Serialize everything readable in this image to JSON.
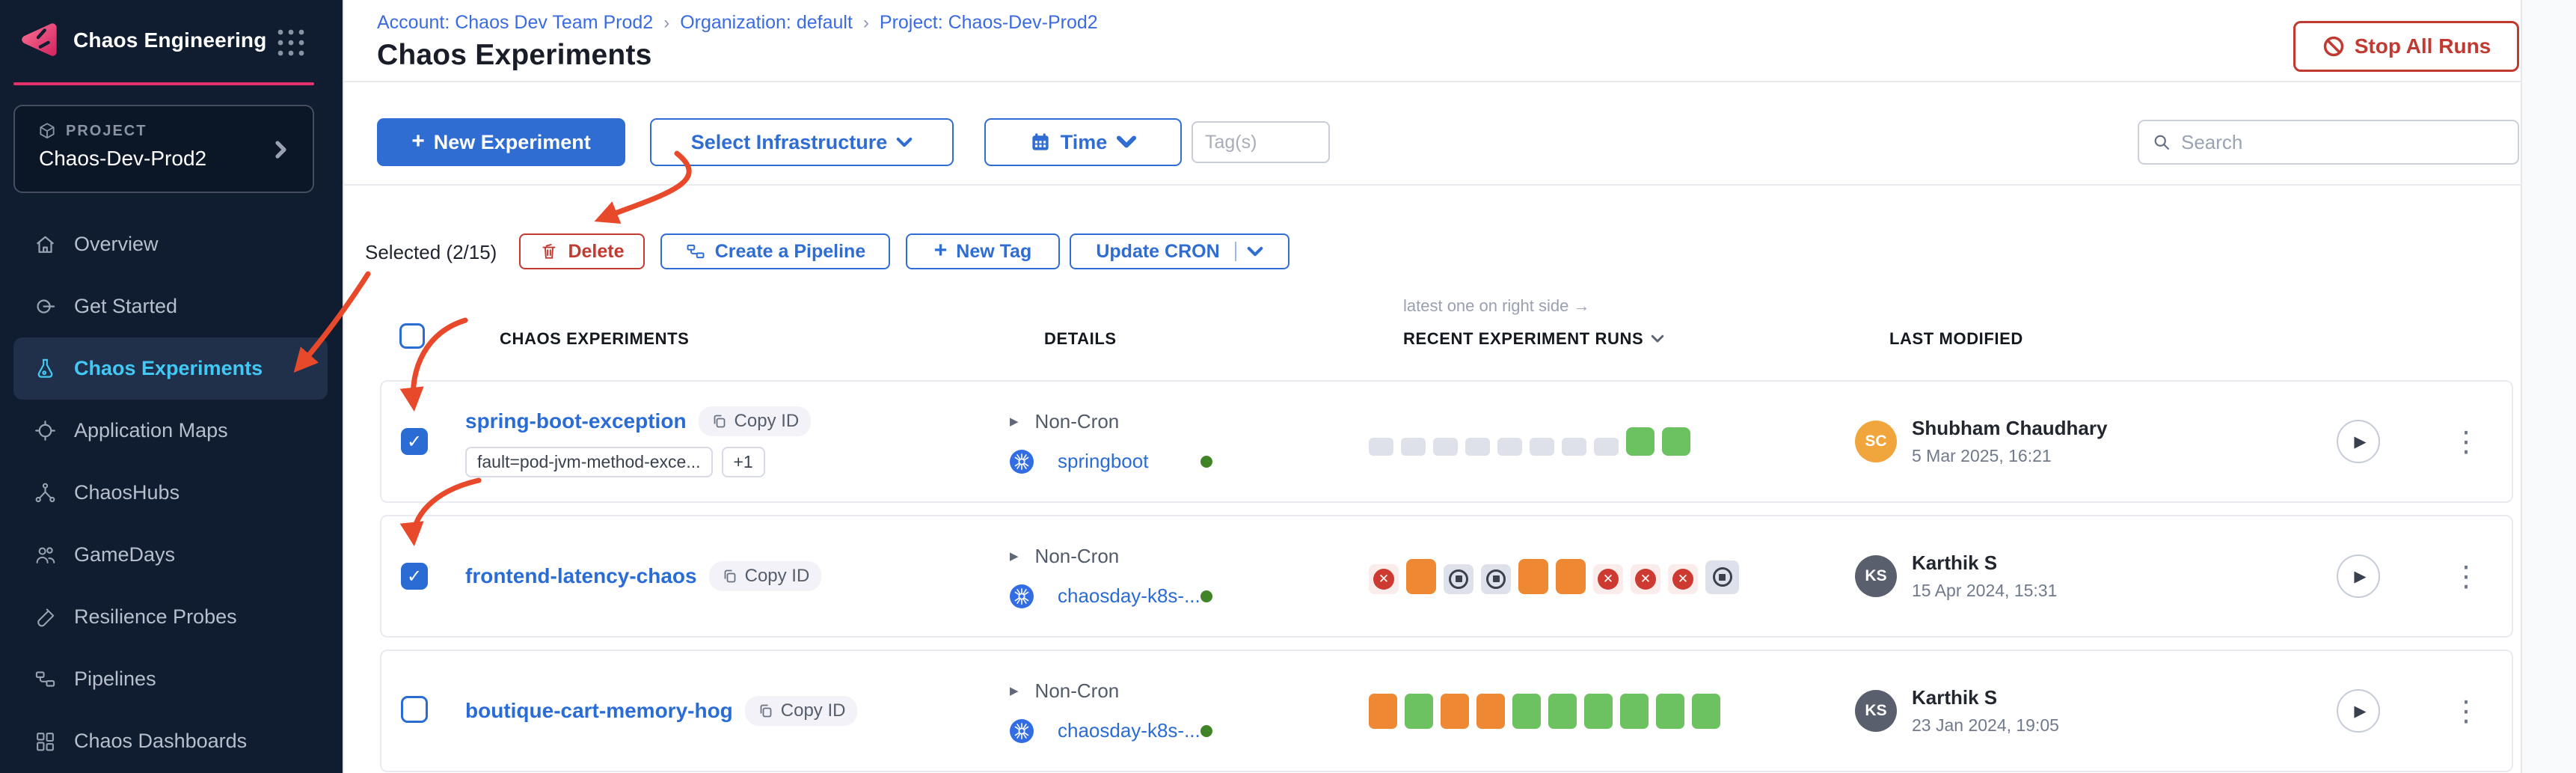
{
  "brand": {
    "module_title": "Chaos Engineering"
  },
  "sidebar": {
    "project_label": "PROJECT",
    "project_name": "Chaos-Dev-Prod2",
    "items": [
      {
        "label": "Overview",
        "icon": "home",
        "active": false
      },
      {
        "label": "Get Started",
        "icon": "get-started",
        "active": false
      },
      {
        "label": "Chaos Experiments",
        "icon": "flask",
        "active": true
      },
      {
        "label": "Application Maps",
        "icon": "target",
        "active": false
      },
      {
        "label": "ChaosHubs",
        "icon": "hub",
        "active": false
      },
      {
        "label": "GameDays",
        "icon": "people",
        "active": false
      },
      {
        "label": "Resilience Probes",
        "icon": "probe",
        "active": false
      },
      {
        "label": "Pipelines",
        "icon": "pipeline",
        "active": false
      },
      {
        "label": "Chaos Dashboards",
        "icon": "dashboard",
        "active": false
      }
    ]
  },
  "breadcrumb": {
    "items": [
      "Account: Chaos Dev Team Prod2",
      "Organization: default",
      "Project: Chaos-Dev-Prod2"
    ]
  },
  "page": {
    "title": "Chaos Experiments",
    "stop_all_runs_label": "Stop All Runs"
  },
  "toolbar": {
    "new_experiment_label": "New Experiment",
    "select_infrastructure_label": "Select Infrastructure",
    "time_label": "Time",
    "tags_placeholder": "Tag(s)",
    "search_placeholder": "Search"
  },
  "selection_bar": {
    "selected_text": "Selected (2/15)",
    "delete_label": "Delete",
    "create_pipeline_label": "Create a Pipeline",
    "new_tag_label": "New Tag",
    "update_cron_label": "Update CRON"
  },
  "table": {
    "note": "latest one on right side →",
    "headers": {
      "experiments": "CHAOS EXPERIMENTS",
      "details": "DETAILS",
      "recent_runs": "RECENT EXPERIMENT RUNS",
      "last_modified": "LAST MODIFIED"
    },
    "rows": [
      {
        "name": "spring-boot-exception",
        "copy_label": "Copy ID",
        "checked": true,
        "tags": [
          "fault=pod-jvm-method-exce...",
          "+1"
        ],
        "schedule": "Non-Cron",
        "infrastructure": "springboot",
        "runs": [
          "none",
          "none",
          "none",
          "none",
          "none",
          "none",
          "none",
          "none",
          "success",
          "success"
        ],
        "modified": {
          "initials": "SC",
          "name": "Shubham Chaudhary",
          "date": "5 Mar 2025, 16:21",
          "avatar_color": "#f0a63c"
        }
      },
      {
        "name": "frontend-latency-chaos",
        "copy_label": "Copy ID",
        "checked": true,
        "tags": [],
        "schedule": "Non-Cron",
        "infrastructure": "chaosday-k8s-...",
        "runs": [
          "failed",
          "running",
          "stopped",
          "stopped",
          "running",
          "running",
          "failed",
          "failed",
          "failed",
          "stopped"
        ],
        "modified": {
          "initials": "KS",
          "name": "Karthik S",
          "date": "15 Apr 2024, 15:31",
          "avatar_color": "#5a5f6d"
        }
      },
      {
        "name": "boutique-cart-memory-hog",
        "copy_label": "Copy ID",
        "checked": false,
        "tags": [],
        "schedule": "Non-Cron",
        "infrastructure": "chaosday-k8s-...",
        "runs": [
          "running",
          "success",
          "running",
          "running",
          "success",
          "success",
          "success",
          "success",
          "success",
          "success"
        ],
        "modified": {
          "initials": "KS",
          "name": "Karthik S",
          "date": "23 Jan 2024, 19:05",
          "avatar_color": "#5a5f6d"
        }
      }
    ]
  }
}
